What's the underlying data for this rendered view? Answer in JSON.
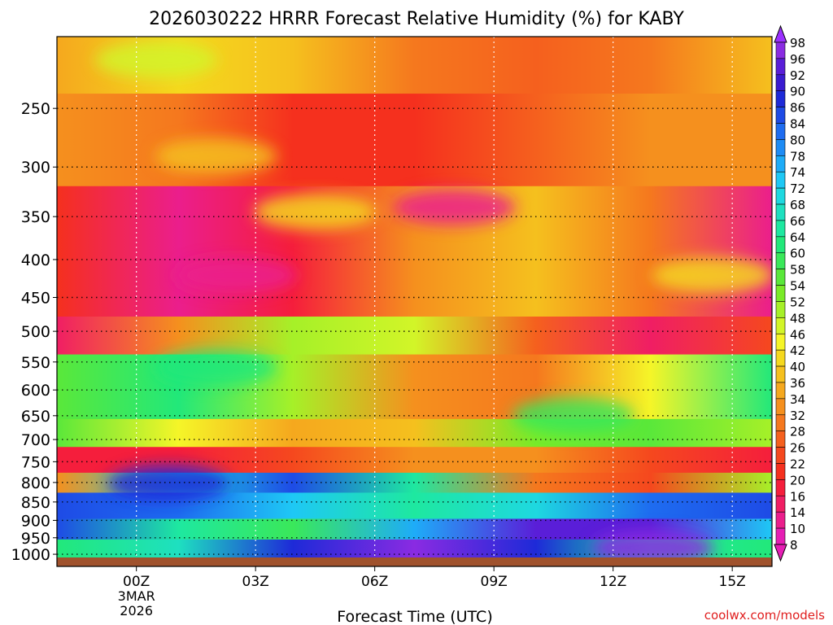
{
  "title": "2026030222 HRRR Forecast Relative Humidity (%) for KABY",
  "watermark": "coolwx.com/models",
  "chart_data": {
    "type": "heatmap",
    "title": "2026030222 HRRR Forecast Relative Humidity (%) for KABY",
    "xlabel": "Forecast Time (UTC)",
    "ylabel": "",
    "x_ticks": [
      {
        "label": "00Z",
        "hour": 0,
        "sub": [
          "3MAR",
          "2026"
        ]
      },
      {
        "label": "03Z",
        "hour": 3
      },
      {
        "label": "06Z",
        "hour": 6
      },
      {
        "label": "09Z",
        "hour": 9
      },
      {
        "label": "12Z",
        "hour": 12
      },
      {
        "label": "15Z",
        "hour": 15
      }
    ],
    "x_range_hours": [
      -2,
      16
    ],
    "y_axis": "pressure (hPa), reversed log scale",
    "y_ticks": [
      250,
      300,
      350,
      400,
      450,
      500,
      550,
      600,
      650,
      700,
      750,
      800,
      850,
      900,
      950,
      1000
    ],
    "y_range_hpa": [
      200,
      1010
    ],
    "grid": "dotted",
    "colorbar": {
      "levels": [
        98,
        96,
        92,
        90,
        86,
        84,
        80,
        78,
        74,
        72,
        68,
        66,
        64,
        60,
        58,
        54,
        52,
        48,
        46,
        42,
        40,
        36,
        34,
        32,
        28,
        26,
        22,
        20,
        16,
        14,
        10,
        8
      ],
      "colors": [
        "#9b30ff",
        "#8a2be2",
        "#5a1ed8",
        "#3a1bd0",
        "#1e2ad8",
        "#1e4be6",
        "#1e6cf0",
        "#1e8cf5",
        "#1eacf8",
        "#1ec8f5",
        "#1ed8e0",
        "#1ee0c0",
        "#1ee8a0",
        "#22e87a",
        "#3ae85a",
        "#5ae83a",
        "#7aeb28",
        "#a6f028",
        "#d2f528",
        "#f5f528",
        "#f5d81e",
        "#f5c01e",
        "#f5a81e",
        "#f5901e",
        "#f5781e",
        "#f5601e",
        "#f5481e",
        "#f5301e",
        "#f51e3c",
        "#f01e64",
        "#eb1e8c",
        "#e61eb4"
      ],
      "position": "right"
    },
    "bands": [
      {
        "p_top": 200,
        "p_bot": 240,
        "rh_range": [
          26,
          42
        ]
      },
      {
        "p_top": 240,
        "p_bot": 320,
        "rh_range": [
          20,
          34
        ]
      },
      {
        "p_top": 320,
        "p_bot": 480,
        "rh_range": [
          10,
          40
        ]
      },
      {
        "p_top": 480,
        "p_bot": 540,
        "rh_range": [
          14,
          52
        ]
      },
      {
        "p_top": 540,
        "p_bot": 660,
        "rh_range": [
          28,
          64
        ]
      },
      {
        "p_top": 660,
        "p_bot": 720,
        "rh_range": [
          34,
          58
        ]
      },
      {
        "p_top": 720,
        "p_bot": 780,
        "rh_range": [
          16,
          34
        ]
      },
      {
        "p_top": 780,
        "p_bot": 830,
        "rh_range": [
          20,
          86
        ]
      },
      {
        "p_top": 830,
        "p_bot": 900,
        "rh_range": [
          64,
          86
        ]
      },
      {
        "p_top": 900,
        "p_bot": 960,
        "rh_range": [
          58,
          96
        ]
      },
      {
        "p_top": 960,
        "p_bot": 1005,
        "rh_range": [
          60,
          98
        ]
      }
    ],
    "patches": [
      {
        "hour": 2.5,
        "p": 420,
        "rh": 10
      },
      {
        "hour": 8.0,
        "p": 340,
        "rh": 10
      },
      {
        "hour": 2.0,
        "p": 290,
        "rh": 36
      },
      {
        "hour": 4.5,
        "p": 345,
        "rh": 40
      },
      {
        "hour": 14.5,
        "p": 420,
        "rh": 40
      },
      {
        "hour": 2.0,
        "p": 560,
        "rh": 60
      },
      {
        "hour": 0.8,
        "p": 803,
        "rh": 86
      },
      {
        "hour": 13.0,
        "p": 980,
        "rh": 96
      },
      {
        "hour": 0.5,
        "p": 215,
        "rh": 46
      },
      {
        "hour": 11.0,
        "p": 650,
        "rh": 58
      }
    ]
  }
}
